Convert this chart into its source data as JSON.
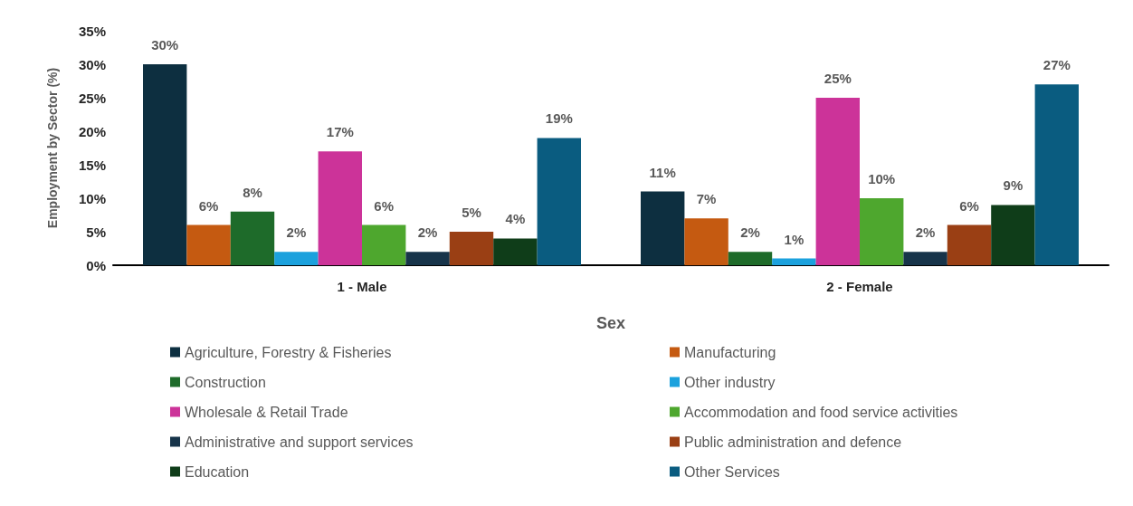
{
  "chart_data": {
    "type": "bar",
    "xlabel": "Sex",
    "ylabel": "Employment by Sector (%)",
    "categories": [
      "1 - Male",
      "2 - Female"
    ],
    "ylim": [
      0,
      35
    ],
    "yticks": [
      {
        "value": 0,
        "label": "0%"
      },
      {
        "value": 5,
        "label": "5%"
      },
      {
        "value": 10,
        "label": "10%"
      },
      {
        "value": 15,
        "label": "15%"
      },
      {
        "value": 20,
        "label": "20%"
      },
      {
        "value": 25,
        "label": "25%"
      },
      {
        "value": 30,
        "label": "30%"
      },
      {
        "value": 35,
        "label": "35%"
      }
    ],
    "grid": false,
    "legend": "bottom",
    "series": [
      {
        "name": "Agriculture, Forestry & Fisheries",
        "color": "#0d2f40",
        "values": [
          30,
          11
        ],
        "value_labels": [
          "30%",
          "11%"
        ]
      },
      {
        "name": "Manufacturing",
        "color": "#c55a11",
        "values": [
          6,
          7
        ],
        "value_labels": [
          "6%",
          "7%"
        ]
      },
      {
        "name": "Construction",
        "color": "#1e6b2a",
        "values": [
          8,
          2
        ],
        "value_labels": [
          "8%",
          "2%"
        ]
      },
      {
        "name": "Other industry",
        "color": "#1ba1dd",
        "values": [
          2,
          1
        ],
        "value_labels": [
          "2%",
          "1%"
        ]
      },
      {
        "name": "Wholesale & Retail Trade",
        "color": "#cc3399",
        "values": [
          17,
          25
        ],
        "value_labels": [
          "17%",
          "25%"
        ]
      },
      {
        "name": "Accommodation and food service activities",
        "color": "#4ea72e",
        "values": [
          6,
          10
        ],
        "value_labels": [
          "6%",
          "10%"
        ]
      },
      {
        "name": "Administrative and support services",
        "color": "#17344a",
        "values": [
          2,
          2
        ],
        "value_labels": [
          "2%",
          "2%"
        ]
      },
      {
        "name": "Public administration and defence",
        "color": "#9a3f14",
        "values": [
          5,
          6
        ],
        "value_labels": [
          "5%",
          "6%"
        ]
      },
      {
        "name": "Education",
        "color": "#0f3d19",
        "values": [
          4,
          9
        ],
        "value_labels": [
          "4%",
          "9%"
        ]
      },
      {
        "name": "Other Services",
        "color": "#0a5c80",
        "values": [
          19,
          27
        ],
        "value_labels": [
          "19%",
          "27%"
        ]
      }
    ]
  }
}
